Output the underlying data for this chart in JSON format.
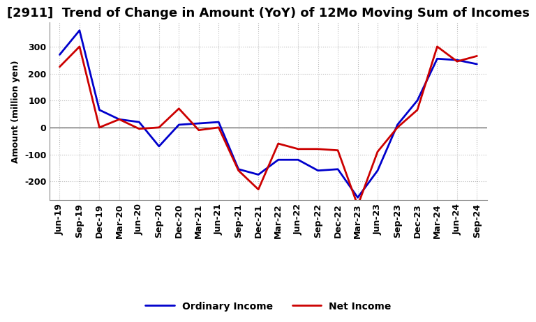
{
  "title": "[2911]  Trend of Change in Amount (YoY) of 12Mo Moving Sum of Incomes",
  "ylabel": "Amount (million yen)",
  "labels": [
    "Jun-19",
    "Sep-19",
    "Dec-19",
    "Mar-20",
    "Jun-20",
    "Sep-20",
    "Dec-20",
    "Mar-21",
    "Jun-21",
    "Sep-21",
    "Dec-21",
    "Mar-22",
    "Jun-22",
    "Sep-22",
    "Dec-22",
    "Mar-23",
    "Jun-23",
    "Sep-23",
    "Dec-23",
    "Mar-24",
    "Jun-24",
    "Sep-24"
  ],
  "ordinary_income": [
    270,
    360,
    65,
    30,
    20,
    -70,
    10,
    15,
    20,
    -155,
    -175,
    -120,
    -120,
    -160,
    -155,
    -260,
    -160,
    10,
    100,
    255,
    250,
    235
  ],
  "net_income": [
    225,
    300,
    0,
    30,
    -5,
    0,
    70,
    -10,
    0,
    -160,
    -230,
    -60,
    -80,
    -80,
    -85,
    -290,
    -90,
    0,
    65,
    300,
    245,
    265
  ],
  "ordinary_income_color": "#0000CC",
  "net_income_color": "#CC0000",
  "ylim": [
    -270,
    390
  ],
  "yticks": [
    -200,
    -100,
    0,
    100,
    200,
    300
  ],
  "grid_color": "#BBBBBB",
  "line_width": 2.0,
  "title_fontsize": 13,
  "axis_fontsize": 9,
  "tick_fontsize": 9,
  "legend_fontsize": 10
}
